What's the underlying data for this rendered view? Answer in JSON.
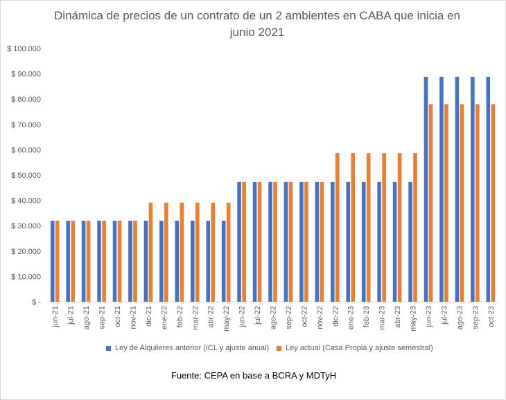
{
  "chart_data": {
    "type": "bar",
    "title_line1": "Dinámica de precios de un contrato de un 2 ambientes en CABA que inicia en",
    "title_line2": "junio 2021",
    "categories": [
      "jun-21",
      "jul-21",
      "ago-21",
      "sep-21",
      "oct-21",
      "nov-21",
      "dic-21",
      "ene-22",
      "feb-22",
      "mar-22",
      "abr-22",
      "may-22",
      "jun-22",
      "jul-22",
      "ago-22",
      "sep-22",
      "oct-22",
      "nov-22",
      "dic-22",
      "ene-23",
      "feb-23",
      "mar-23",
      "abr-23",
      "may-23",
      "jun-23",
      "jul-23",
      "ago-23",
      "sep-23",
      "oct-23"
    ],
    "series": [
      {
        "name": "Ley de Alquileres anterior (ICL y ajuste anual)",
        "color": "#4472c4",
        "values": [
          32000,
          32000,
          32000,
          32000,
          32000,
          32000,
          32000,
          32000,
          32000,
          32000,
          32000,
          32000,
          47300,
          47300,
          47300,
          47300,
          47300,
          47300,
          47300,
          47300,
          47300,
          47300,
          47300,
          47300,
          88800,
          88800,
          88800,
          88800,
          88800
        ]
      },
      {
        "name": "Ley actual (Casa Propia y ajuste semestral)",
        "color": "#ed7d31",
        "values": [
          32000,
          32000,
          32000,
          32000,
          32000,
          32000,
          39100,
          39100,
          39100,
          39100,
          39100,
          39100,
          47300,
          47300,
          47300,
          47300,
          47300,
          47300,
          58700,
          58700,
          58700,
          58700,
          58700,
          58700,
          78000,
          78000,
          78000,
          78000,
          78000
        ]
      }
    ],
    "yticks": [
      0,
      10000,
      20000,
      30000,
      40000,
      50000,
      60000,
      70000,
      80000,
      90000,
      100000
    ],
    "ytick_labels": [
      "$ -",
      "$ 10.000",
      "$ 20.000",
      "$ 30.000",
      "$ 40.000",
      "$ 50.000",
      "$ 60.000",
      "$ 70.000",
      "$ 80.000",
      "$ 90.000",
      "$ 100.000"
    ],
    "ylim": [
      0,
      100000
    ],
    "grid": false,
    "legend_position": "bottom",
    "source": "Fuente: CEPA en base a BCRA y MDTyH"
  }
}
